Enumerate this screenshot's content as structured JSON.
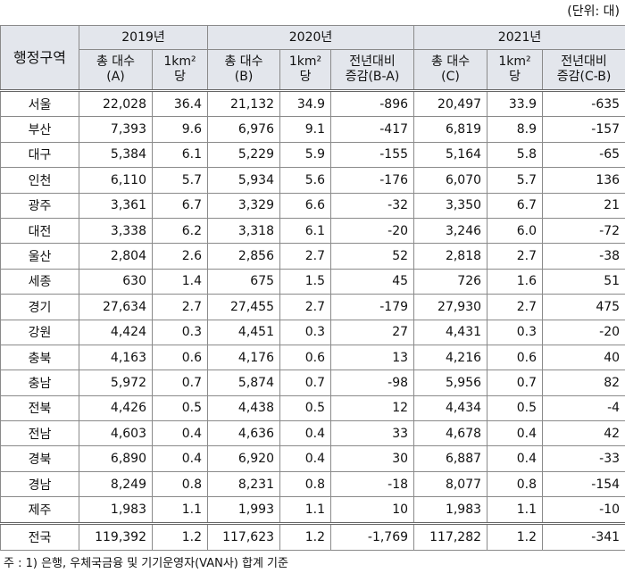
{
  "unit": "(단위: 대)",
  "table": {
    "region_header": "행정구역",
    "years": [
      "2019년",
      "2020년",
      "2021년"
    ],
    "subheaders": [
      [
        "총 대수",
        "(A)"
      ],
      [
        "1km²",
        "당"
      ],
      [
        "총 대수",
        "(B)"
      ],
      [
        "1km²",
        "당"
      ],
      [
        "전년대비",
        "증감(B-A)"
      ],
      [
        "총 대수",
        "(C)"
      ],
      [
        "1km²",
        "당"
      ],
      [
        "전년대비",
        "증감(C-B)"
      ]
    ],
    "rows": [
      [
        "서울",
        "22,028",
        "36.4",
        "21,132",
        "34.9",
        "-896",
        "20,497",
        "33.9",
        "-635"
      ],
      [
        "부산",
        "7,393",
        "9.6",
        "6,976",
        "9.1",
        "-417",
        "6,819",
        "8.9",
        "-157"
      ],
      [
        "대구",
        "5,384",
        "6.1",
        "5,229",
        "5.9",
        "-155",
        "5,164",
        "5.8",
        "-65"
      ],
      [
        "인천",
        "6,110",
        "5.7",
        "5,934",
        "5.6",
        "-176",
        "6,070",
        "5.7",
        "136"
      ],
      [
        "광주",
        "3,361",
        "6.7",
        "3,329",
        "6.6",
        "-32",
        "3,350",
        "6.7",
        "21"
      ],
      [
        "대전",
        "3,338",
        "6.2",
        "3,318",
        "6.1",
        "-20",
        "3,246",
        "6.0",
        "-72"
      ],
      [
        "울산",
        "2,804",
        "2.6",
        "2,856",
        "2.7",
        "52",
        "2,818",
        "2.7",
        "-38"
      ],
      [
        "세종",
        "630",
        "1.4",
        "675",
        "1.5",
        "45",
        "726",
        "1.6",
        "51"
      ],
      [
        "경기",
        "27,634",
        "2.7",
        "27,455",
        "2.7",
        "-179",
        "27,930",
        "2.7",
        "475"
      ],
      [
        "강원",
        "4,424",
        "0.3",
        "4,451",
        "0.3",
        "27",
        "4,431",
        "0.3",
        "-20"
      ],
      [
        "충북",
        "4,163",
        "0.6",
        "4,176",
        "0.6",
        "13",
        "4,216",
        "0.6",
        "40"
      ],
      [
        "충남",
        "5,972",
        "0.7",
        "5,874",
        "0.7",
        "-98",
        "5,956",
        "0.7",
        "82"
      ],
      [
        "전북",
        "4,426",
        "0.5",
        "4,438",
        "0.5",
        "12",
        "4,434",
        "0.5",
        "-4"
      ],
      [
        "전남",
        "4,603",
        "0.4",
        "4,636",
        "0.4",
        "33",
        "4,678",
        "0.4",
        "42"
      ],
      [
        "경북",
        "6,890",
        "0.4",
        "6,920",
        "0.4",
        "30",
        "6,887",
        "0.4",
        "-33"
      ],
      [
        "경남",
        "8,249",
        "0.8",
        "8,231",
        "0.8",
        "-18",
        "8,077",
        "0.8",
        "-154"
      ],
      [
        "제주",
        "1,983",
        "1.1",
        "1,993",
        "1.1",
        "10",
        "1,983",
        "1.1",
        "-10"
      ]
    ],
    "total": [
      "전국",
      "119,392",
      "1.2",
      "117,623",
      "1.2",
      "-1,769",
      "117,282",
      "1.2",
      "-341"
    ]
  },
  "note": "주 : 1) 은행, 우체국금융 및 기기운영자(VAN사) 합계 기준"
}
